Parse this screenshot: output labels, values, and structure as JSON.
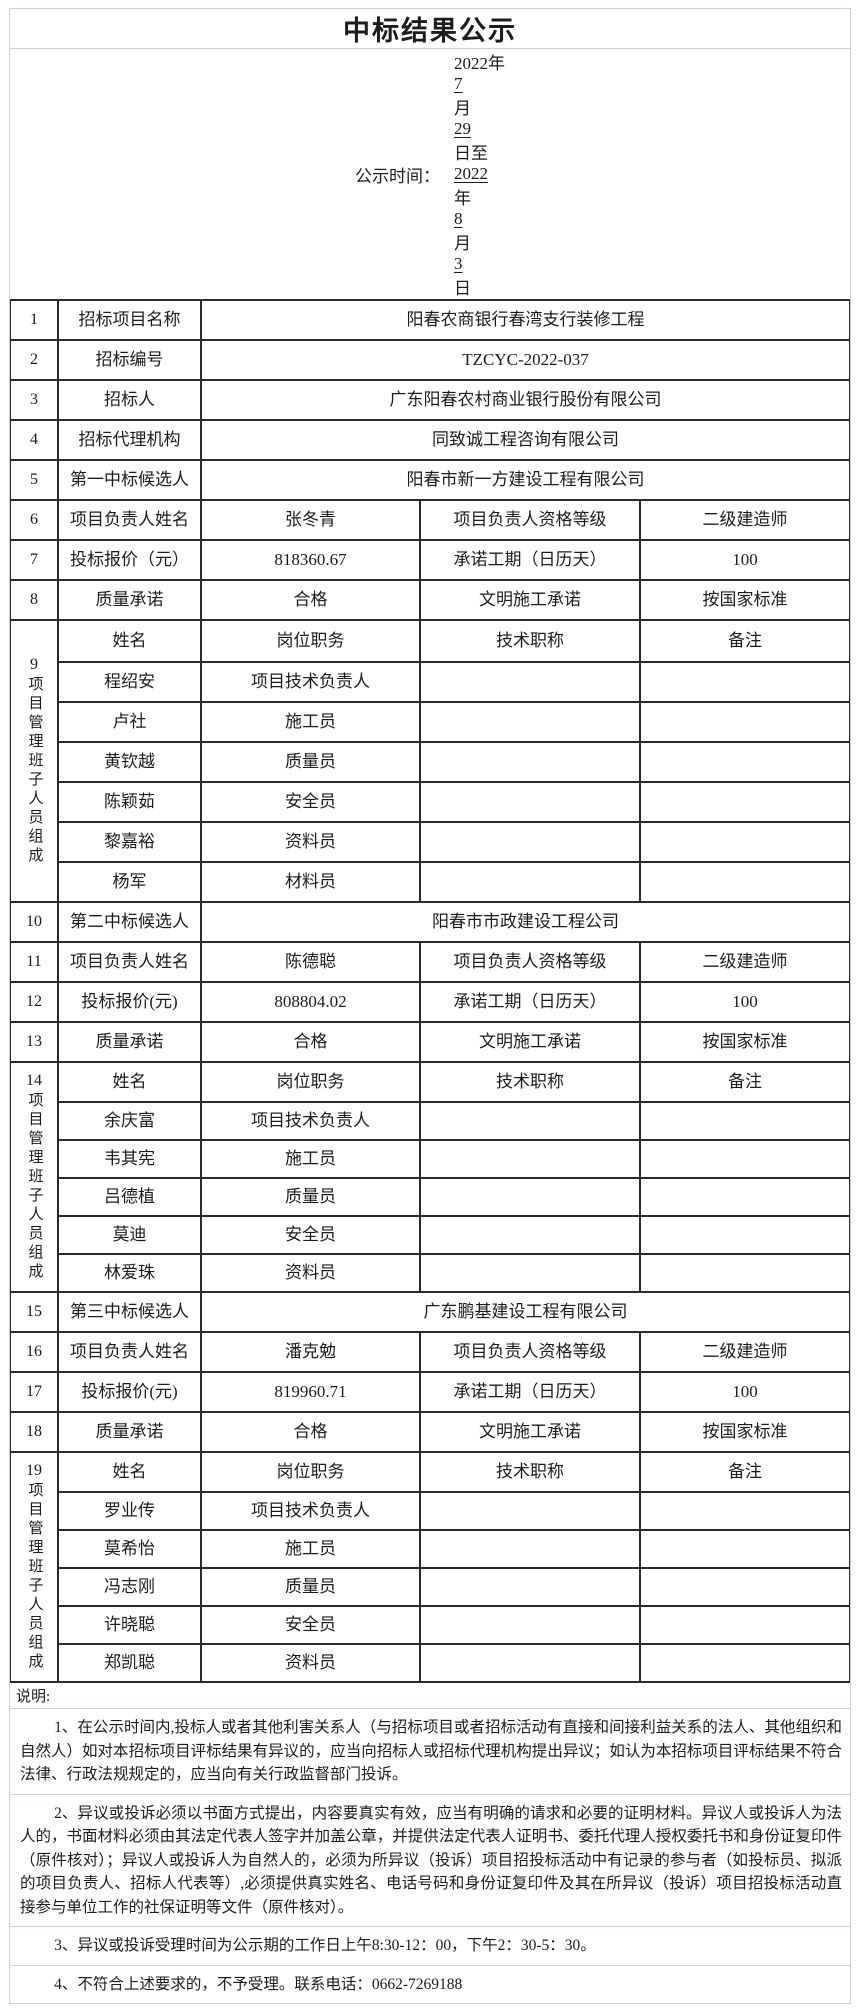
{
  "title": "中标结果公示",
  "publicity_time": {
    "prefix": "公示时间：",
    "segments": [
      {
        "text": "2022年",
        "u": false
      },
      {
        "text": " 7 ",
        "u": true
      },
      {
        "text": "月",
        "u": false
      },
      {
        "text": " 29 ",
        "u": true
      },
      {
        "text": "日至",
        "u": false
      },
      {
        "text": " 2022 ",
        "u": true
      },
      {
        "text": "年",
        "u": false
      },
      {
        "text": " 8",
        "u": true
      },
      {
        "text": "月",
        "u": false
      },
      {
        "text": " 3 ",
        "u": true
      },
      {
        "text": "日",
        "u": false
      }
    ]
  },
  "table": {
    "rows": [
      {
        "type": "full",
        "no": "1",
        "label": "招标项目名称",
        "value": "阳春农商银行春湾支行装修工程"
      },
      {
        "type": "full",
        "no": "2",
        "label": "招标编号",
        "value": "TZCYC-2022-037"
      },
      {
        "type": "full",
        "no": "3",
        "label": "招标人",
        "value": "广东阳春农村商业银行股份有限公司"
      },
      {
        "type": "full",
        "no": "4",
        "label": "招标代理机构",
        "value": "同致诚工程咨询有限公司"
      },
      {
        "type": "full",
        "no": "5",
        "label": "第一中标候选人",
        "value": "阳春市新一方建设工程有限公司"
      },
      {
        "type": "quad",
        "no": "6",
        "label": "项目负责人姓名",
        "value": "张冬青",
        "label2": "项目负责人资格等级",
        "value2": "二级建造师"
      },
      {
        "type": "quad",
        "no": "7",
        "label": "投标报价（元）",
        "value": "818360.67",
        "label2": "承诺工期（日历天）",
        "value2": "100"
      },
      {
        "type": "quad",
        "no": "8",
        "label": "质量承诺",
        "value": "合格",
        "label2": "文明施工承诺",
        "value2": "按国家标准"
      },
      {
        "type": "block",
        "no": "9",
        "side": "项目管理班子人员组成",
        "sub": [
          [
            "姓名",
            "岗位职务",
            "技术职称",
            "备注"
          ],
          [
            "程绍安",
            "项目技术负责人",
            "",
            ""
          ],
          [
            "卢社",
            "施工员",
            "",
            ""
          ],
          [
            "黄钦越",
            "质量员",
            "",
            ""
          ],
          [
            "陈颖茹",
            "安全员",
            "",
            ""
          ],
          [
            "黎嘉裕",
            "资料员",
            "",
            ""
          ],
          [
            "杨军",
            "材料员",
            "",
            ""
          ]
        ]
      },
      {
        "type": "full",
        "no": "10",
        "label": "第二中标候选人",
        "value": "阳春市市政建设工程公司"
      },
      {
        "type": "quad",
        "no": "11",
        "label": "项目负责人姓名",
        "value": "陈德聪",
        "label2": "项目负责人资格等级",
        "value2": "二级建造师"
      },
      {
        "type": "quad",
        "no": "12",
        "label": "投标报价(元)",
        "value": "808804.02",
        "label2": "承诺工期（日历天）",
        "value2": "100"
      },
      {
        "type": "quad",
        "no": "13",
        "label": "质量承诺",
        "value": "合格",
        "label2": "文明施工承诺",
        "value2": "按国家标准"
      },
      {
        "type": "block",
        "no": "14",
        "side": "项目管理班子人员组成",
        "sub": [
          [
            "姓名",
            "岗位职务",
            "技术职称",
            "备注"
          ],
          [
            "余庆富",
            "项目技术负责人",
            "",
            ""
          ],
          [
            "韦其宪",
            "施工员",
            "",
            ""
          ],
          [
            "吕德植",
            "质量员",
            "",
            ""
          ],
          [
            "莫迪",
            "安全员",
            "",
            ""
          ],
          [
            "林爱珠",
            "资料员",
            "",
            ""
          ]
        ]
      },
      {
        "type": "full",
        "no": "15",
        "label": "第三中标候选人",
        "value": "广东鹏基建设工程有限公司"
      },
      {
        "type": "quad",
        "no": "16",
        "label": "项目负责人姓名",
        "value": "潘克勉",
        "label2": "项目负责人资格等级",
        "value2": "二级建造师"
      },
      {
        "type": "quad",
        "no": "17",
        "label": "投标报价(元)",
        "value": "819960.71",
        "label2": "承诺工期（日历天）",
        "value2": "100"
      },
      {
        "type": "quad",
        "no": "18",
        "label": "质量承诺",
        "value": "合格",
        "label2": "文明施工承诺",
        "value2": "按国家标准"
      },
      {
        "type": "block",
        "no": "19",
        "side": "项目管理班子人员组成",
        "sub": [
          [
            "姓名",
            "岗位职务",
            "技术职称",
            "备注"
          ],
          [
            "罗业传",
            "项目技术负责人",
            "",
            ""
          ],
          [
            "莫希怡",
            "施工员",
            "",
            ""
          ],
          [
            "冯志刚",
            "质量员",
            "",
            ""
          ],
          [
            "许晓聪",
            "安全员",
            "",
            ""
          ],
          [
            "郑凯聪",
            "资料员",
            "",
            ""
          ]
        ]
      }
    ]
  },
  "notes": {
    "heading": "说明:",
    "items": [
      "1、在公示时间内,投标人或者其他利害关系人（与招标项目或者招标活动有直接和间接利益关系的法人、其他组织和自然人）如对本招标项目评标结果有异议的，应当向招标人或招标代理机构提出异议；如认为本招标项目评标结果不符合法律、行政法规规定的，应当向有关行政监督部门投诉。",
      "2、异议或投诉必须以书面方式提出，内容要真实有效，应当有明确的请求和必要的证明材料。异议人或投诉人为法人的，书面材料必须由其法定代表人签字并加盖公章，并提供法定代表人证明书、委托代理人授权委托书和身份证复印件（原件核对）；异议人或投诉人为自然人的，必须为所异议（投诉）项目招投标活动中有记录的参与者（如投标员、拟派的项目负责人、招标人代表等）,必须提供真实姓名、电话号码和身份证复印件及其在所异议（投诉）项目招投标活动直接参与单位工作的社保证明等文件（原件核对）。",
      "3、异议或投诉受理时间为公示期的工作日上午8:30-12：00，下午2：30-5：30。",
      "4、不符合上述要求的，不予受理。联系电话：0662-7269188"
    ]
  }
}
